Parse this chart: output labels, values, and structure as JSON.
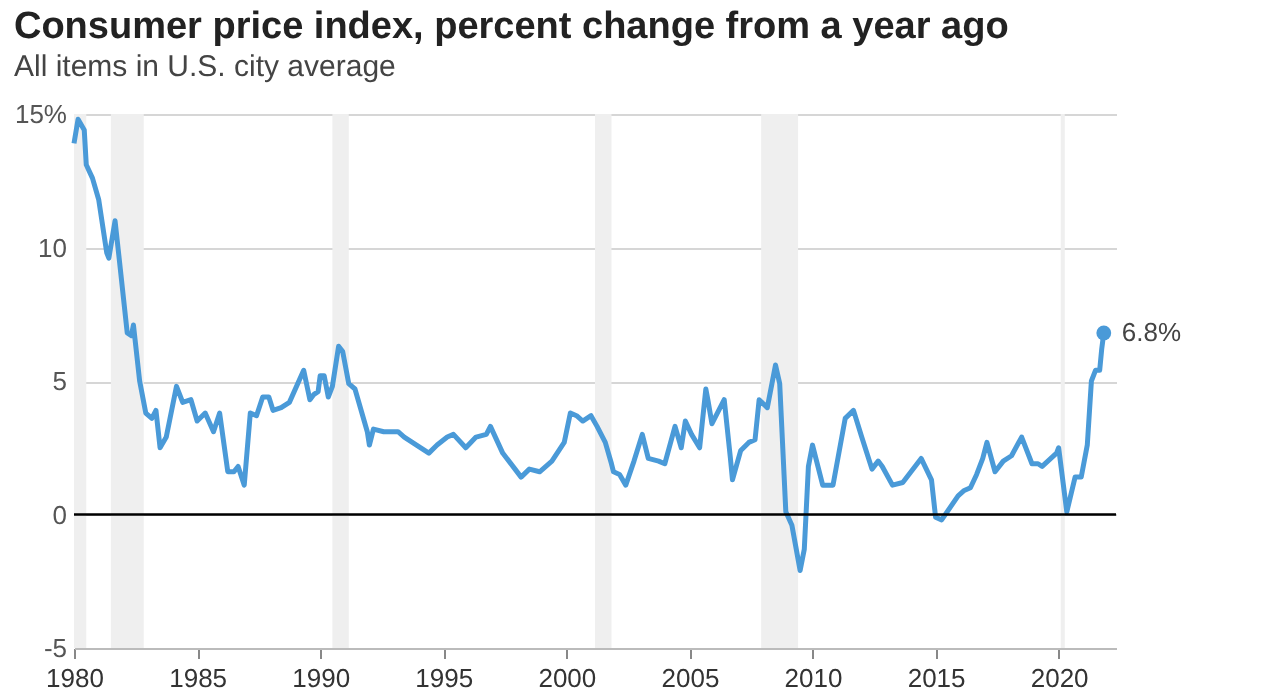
{
  "chart_data": {
    "type": "line",
    "title": "Consumer price index, percent change from a year ago",
    "subtitle": "All items in U.S. city average",
    "x": [
      "1980-01",
      "1980-03",
      "1980-06",
      "1980-07",
      "1980-10",
      "1981-01",
      "1981-05",
      "1981-06",
      "1981-09",
      "1981-11",
      "1982-03",
      "1982-05",
      "1982-06",
      "1982-09",
      "1982-12",
      "1983-03",
      "1983-05",
      "1983-07",
      "1983-10",
      "1984-03",
      "1984-06",
      "1984-10",
      "1985-01",
      "1985-05",
      "1985-09",
      "1985-12",
      "1986-04",
      "1986-07",
      "1986-09",
      "1986-12",
      "1987-03",
      "1987-06",
      "1987-09",
      "1987-12",
      "1988-02",
      "1988-06",
      "1988-10",
      "1989-05",
      "1989-08",
      "1989-10",
      "1989-12",
      "1990-01",
      "1990-03",
      "1990-05",
      "1990-07",
      "1990-10",
      "1990-12",
      "1991-03",
      "1991-06",
      "1991-12",
      "1992-01",
      "1992-03",
      "1992-08",
      "1993-03",
      "1993-06",
      "1994-06",
      "1994-10",
      "1995-03",
      "1995-06",
      "1995-12",
      "1996-05",
      "1996-10",
      "1996-12",
      "1997-06",
      "1997-12",
      "1998-03",
      "1998-07",
      "1998-12",
      "1999-06",
      "1999-12",
      "2000-03",
      "2000-06",
      "2000-09",
      "2001-01",
      "2001-04",
      "2001-08",
      "2001-11",
      "2001-12",
      "2002-03",
      "2002-06",
      "2002-10",
      "2003-02",
      "2003-05",
      "2003-10",
      "2004-01",
      "2004-06",
      "2004-09",
      "2004-11",
      "2005-02",
      "2005-06",
      "2005-09",
      "2005-10",
      "2005-12",
      "2006-06",
      "2006-09",
      "2006-10",
      "2007-02",
      "2007-06",
      "2007-09",
      "2007-11",
      "2008-03",
      "2008-07",
      "2008-09",
      "2008-12",
      "2009-03",
      "2009-07",
      "2009-09",
      "2009-11",
      "2010-01",
      "2010-06",
      "2010-11",
      "2011-05",
      "2011-09",
      "2012-01",
      "2012-06",
      "2012-09",
      "2012-11",
      "2013-04",
      "2013-09",
      "2013-12",
      "2014-06",
      "2014-11",
      "2015-01",
      "2015-04",
      "2015-12",
      "2016-03",
      "2016-06",
      "2016-09",
      "2016-12",
      "2017-02",
      "2017-06",
      "2017-10",
      "2018-02",
      "2018-07",
      "2018-12",
      "2019-03",
      "2019-05",
      "2019-12",
      "2020-01",
      "2020-05",
      "2020-09",
      "2020-12",
      "2021-03",
      "2021-05",
      "2021-07",
      "2021-09",
      "2021-10",
      "2021-11"
    ],
    "series": [
      {
        "color": "#4a9ad8",
        "values": [
          13.9,
          14.8,
          14.4,
          13.1,
          12.6,
          11.8,
          9.8,
          9.6,
          11.0,
          9.6,
          6.8,
          6.7,
          7.1,
          5.0,
          3.8,
          3.6,
          3.9,
          2.5,
          2.9,
          4.8,
          4.2,
          4.3,
          3.5,
          3.8,
          3.1,
          3.8,
          1.6,
          1.6,
          1.8,
          1.1,
          3.8,
          3.7,
          4.4,
          4.4,
          3.9,
          4.0,
          4.2,
          5.4,
          4.3,
          4.5,
          4.6,
          5.2,
          5.2,
          4.4,
          4.8,
          6.3,
          6.1,
          4.9,
          4.7,
          3.1,
          2.6,
          3.2,
          3.1,
          3.1,
          2.9,
          2.3,
          2.6,
          2.9,
          3.0,
          2.5,
          2.9,
          3.0,
          3.3,
          2.3,
          1.7,
          1.4,
          1.7,
          1.6,
          2.0,
          2.7,
          3.8,
          3.7,
          3.5,
          3.7,
          3.3,
          2.7,
          1.9,
          1.6,
          1.5,
          1.1,
          2.0,
          3.0,
          2.1,
          2.0,
          1.9,
          3.3,
          2.5,
          3.5,
          3.0,
          2.5,
          4.7,
          4.3,
          3.4,
          4.3,
          2.1,
          1.3,
          2.4,
          2.7,
          2.8,
          4.3,
          4.0,
          5.6,
          4.9,
          0.1,
          -0.4,
          -2.1,
          -1.3,
          1.8,
          2.6,
          1.1,
          1.1,
          3.6,
          3.9,
          2.9,
          1.7,
          2.0,
          1.8,
          1.1,
          1.2,
          1.5,
          2.1,
          1.3,
          -0.1,
          -0.2,
          0.7,
          0.9,
          1.0,
          1.5,
          2.1,
          2.7,
          1.6,
          2.0,
          2.2,
          2.9,
          1.9,
          1.9,
          1.8,
          2.3,
          2.5,
          0.1,
          1.4,
          1.4,
          2.6,
          5.0,
          5.4,
          5.4,
          6.2,
          6.8
        ]
      }
    ],
    "xlim": [
      "1980-01",
      "2022-05"
    ],
    "xticks": [
      "1980",
      "1985",
      "1990",
      "1995",
      "2000",
      "2005",
      "2010",
      "2015",
      "2020"
    ],
    "ylim": [
      -5,
      15
    ],
    "yticks": [
      -5,
      0,
      5,
      10,
      {
        "value": 15,
        "label": "15%"
      }
    ],
    "grid": "y",
    "ref_lines": [
      {
        "axis": "y",
        "value": 0,
        "color": "#000000"
      }
    ],
    "bands": [
      {
        "axis": "x",
        "from": "1980-01",
        "to": "1980-07",
        "color": "#efefef"
      },
      {
        "axis": "x",
        "from": "1981-07",
        "to": "1982-11",
        "color": "#efefef"
      },
      {
        "axis": "x",
        "from": "1990-07",
        "to": "1991-03",
        "color": "#efefef"
      },
      {
        "axis": "x",
        "from": "2001-03",
        "to": "2001-11",
        "color": "#efefef"
      },
      {
        "axis": "x",
        "from": "2007-12",
        "to": "2009-06",
        "color": "#efefef"
      },
      {
        "axis": "x",
        "from": "2020-02",
        "to": "2020-04",
        "color": "#efefef"
      }
    ],
    "annotations": [
      {
        "text": "6.8%",
        "x": "2021-11",
        "y": 6.8
      }
    ]
  }
}
